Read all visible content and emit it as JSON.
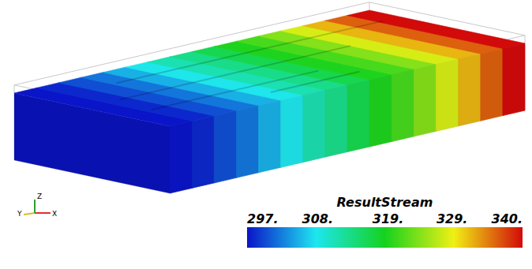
{
  "chart_data": {
    "type": "field",
    "title": "ResultStream",
    "cells": [
      297,
      298,
      300,
      302,
      305,
      308,
      311,
      313,
      316,
      319,
      321,
      324,
      328,
      332,
      336,
      340
    ],
    "colorbar_range": [
      297,
      340
    ],
    "colorbar_ticks": [
      {
        "value": 297,
        "label": "297."
      },
      {
        "value": 308,
        "label": "308."
      },
      {
        "value": 319,
        "label": "319."
      },
      {
        "value": 329,
        "label": "329."
      },
      {
        "value": 340,
        "label": "340."
      }
    ],
    "axes_labels": [
      "X",
      "Y",
      "Z"
    ]
  }
}
